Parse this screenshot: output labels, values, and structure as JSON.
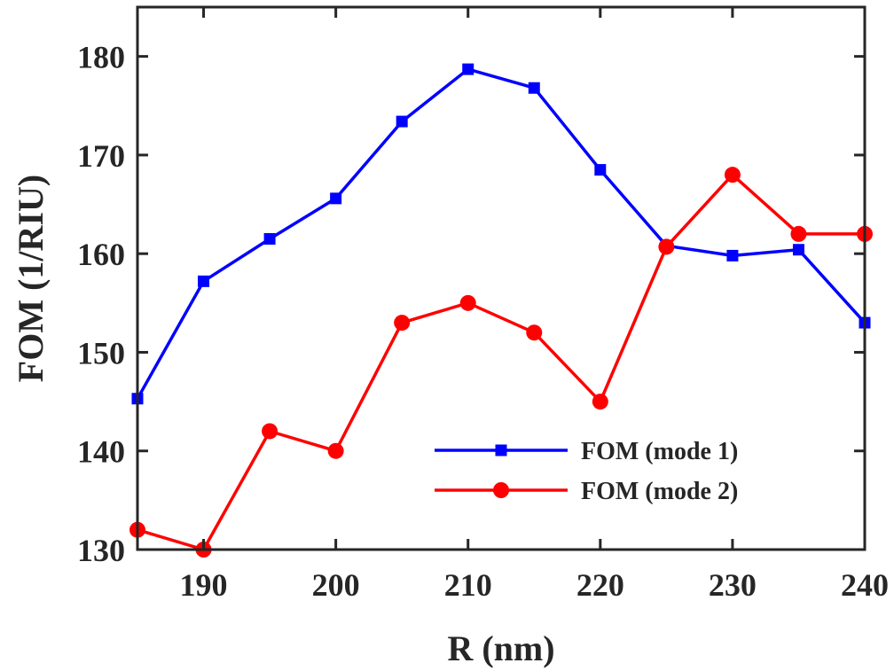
{
  "chart_data": {
    "type": "line",
    "xlabel": "R (nm)",
    "ylabel": "FOM (1/RIU)",
    "xlim": [
      185,
      240
    ],
    "ylim": [
      130,
      185
    ],
    "xticks": [
      190,
      200,
      210,
      220,
      230,
      240
    ],
    "xtick_labels": [
      "190",
      "200",
      "210",
      "220",
      "230",
      "240"
    ],
    "yticks": [
      130,
      140,
      150,
      160,
      170,
      180
    ],
    "ytick_labels": [
      "130",
      "140",
      "150",
      "160",
      "170",
      "180"
    ],
    "grid": false,
    "legend_position": "bottom-right",
    "x": [
      185,
      190,
      195,
      200,
      205,
      210,
      215,
      220,
      225,
      230,
      235,
      240
    ],
    "series": [
      {
        "name": "FOM (mode 1)",
        "color": "#0000ff",
        "marker": "square",
        "values": [
          145.3,
          157.2,
          161.5,
          165.6,
          173.4,
          178.7,
          176.8,
          168.5,
          160.8,
          159.8,
          160.4,
          153.0
        ]
      },
      {
        "name": "FOM (mode 2)",
        "color": "#ff0000",
        "marker": "circle",
        "values": [
          132,
          130,
          142,
          140,
          153,
          155,
          152,
          145,
          160.7,
          168,
          162,
          162
        ]
      }
    ]
  }
}
